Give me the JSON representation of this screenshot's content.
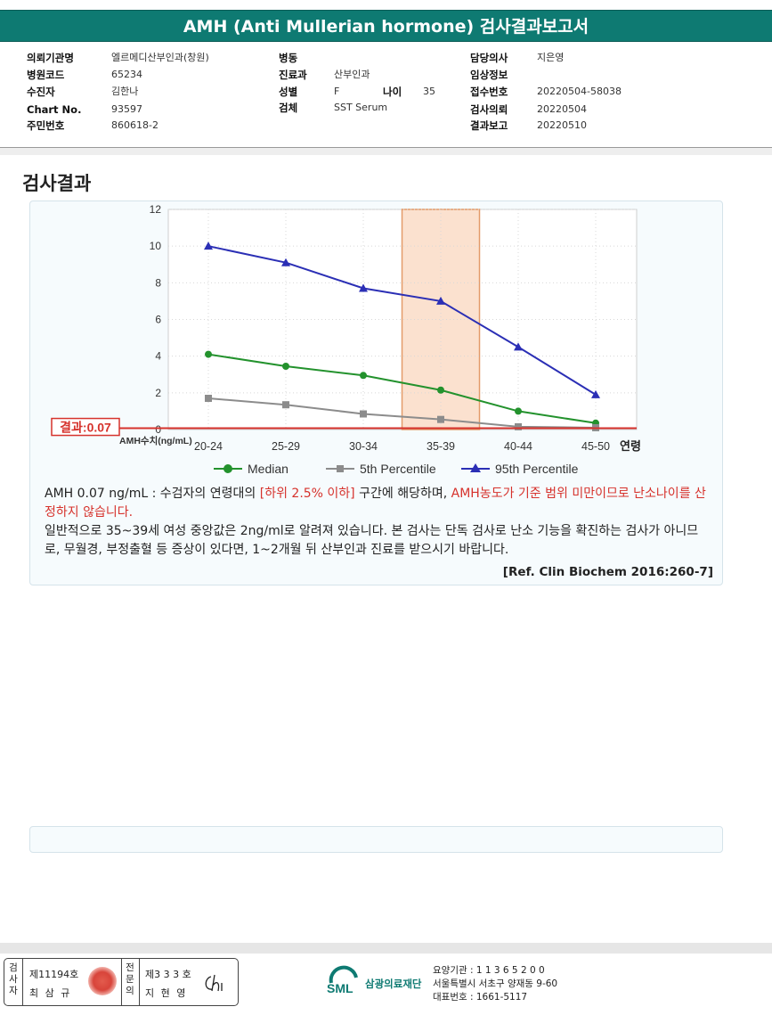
{
  "header": {
    "title": "AMH (Anti Mullerian hormone) 검사결과보고서"
  },
  "info": {
    "col1": [
      {
        "label": "의뢰기관명",
        "value": "엘르메디산부인과(창원)"
      },
      {
        "label": "병원코드",
        "value": "65234"
      },
      {
        "label": "수진자",
        "value": "김한나"
      },
      {
        "label": "Chart No.",
        "value": "93597"
      },
      {
        "label": "주민번호",
        "value": "860618-2"
      }
    ],
    "col2": [
      {
        "label": "병동",
        "value": ""
      },
      {
        "label": "진료과",
        "value": "산부인과"
      },
      {
        "label": "성별",
        "value": "F"
      },
      {
        "label": "검체",
        "value": "SST Serum"
      }
    ],
    "age": {
      "label": "나이",
      "value": "35"
    },
    "col3": [
      {
        "label": "담당의사",
        "value": "지은영"
      },
      {
        "label": "임상정보",
        "value": ""
      },
      {
        "label": "접수번호",
        "value": "20220504-58038"
      },
      {
        "label": "검사의뢰",
        "value": "20220504"
      },
      {
        "label": "결과보고",
        "value": "20220510"
      }
    ]
  },
  "section": {
    "title": "검사결과"
  },
  "chart_data": {
    "type": "line",
    "categories": [
      "20-24",
      "25-29",
      "30-34",
      "35-39",
      "40-44",
      "45-50"
    ],
    "x_axis_suffix": "연령",
    "y_axis_label": "AMH수치(ng/mL)",
    "yticks": [
      0,
      2,
      4,
      6,
      8,
      10,
      12
    ],
    "ylim": [
      0,
      12
    ],
    "highlight_category": "35-39",
    "result_value": 0.07,
    "result_label": "결과:0.07",
    "legend_position": "bottom",
    "series": [
      {
        "name": "Median",
        "color": "#23922d",
        "marker": "circle",
        "values": [
          4.1,
          3.45,
          2.95,
          2.15,
          1.0,
          0.35
        ]
      },
      {
        "name": "5th Percentile",
        "color": "#8c8c8c",
        "marker": "square",
        "values": [
          1.7,
          1.35,
          0.85,
          0.55,
          0.15,
          0.1
        ]
      },
      {
        "name": "95th Percentile",
        "color": "#2b2fb5",
        "marker": "triangle",
        "values": [
          10.0,
          9.1,
          7.7,
          7.0,
          4.5,
          1.9
        ]
      }
    ]
  },
  "description": {
    "line1_prefix": "AMH  0.07 ng/mL : 수검자의 연령대의 ",
    "line1_red1": "[하위 2.5% 이하]",
    "line1_mid": " 구간에 해당하며, ",
    "line1_red2": "AMH농도가 기준 범위 미만이므로 난소나이를 산정하지 않습니다.",
    "line2": "일반적으로 35~39세 여성 중앙값은 2ng/ml로 알려져 있습니다. 본 검사는 단독 검사로 난소 기능을 확진하는 검사가 아니므로, 무월경, 부정출혈 등 증상이 있다면, 1~2개월 뒤 산부인과 진료를 받으시기 바랍니다.",
    "reference": "[Ref. Clin Biochem 2016:260-7]"
  },
  "footer": {
    "examiner_label": "검사자",
    "examiner_no": "제11194호",
    "examiner_name": "최 삼 규",
    "specialist_label": "전문의",
    "specialist_no": "제3 3 3 호",
    "specialist_name": "지 현 영",
    "signature": "Chi",
    "org_name": "삼광의료재단",
    "logo_text": "SML",
    "org_code": "요양기관 : 1 1 3 6 5 2 0 0",
    "address": "서울특별시 서초구 양재동 9-60",
    "phone": "대표번호 : 1661-5117"
  }
}
